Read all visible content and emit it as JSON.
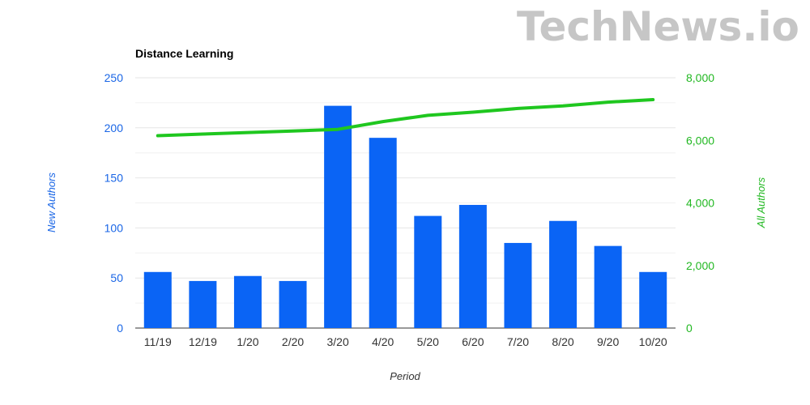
{
  "watermark": "TechNews.io",
  "colors": {
    "bars": "#0a64f5",
    "line": "#1fc71f",
    "left_axis": "#1a66e6",
    "right_axis": "#22b822",
    "grid": "#e6e6e6"
  },
  "chart_data": {
    "type": "bar",
    "title": "Distance Learning",
    "xlabel": "Period",
    "ylabel": "New Authors",
    "y2label": "All Authors",
    "categories": [
      "11/19",
      "12/19",
      "1/20",
      "2/20",
      "3/20",
      "4/20",
      "5/20",
      "6/20",
      "7/20",
      "8/20",
      "9/20",
      "10/20"
    ],
    "ylim": [
      0,
      250
    ],
    "y_ticks": [
      "0",
      "50",
      "100",
      "150",
      "200",
      "250"
    ],
    "y2lim": [
      0,
      8000
    ],
    "y2_ticks": [
      "0",
      "2,000",
      "4,000",
      "6,000",
      "8,000"
    ],
    "grid": true,
    "series": [
      {
        "name": "New Authors",
        "type": "bar",
        "axis": "left",
        "values": [
          56,
          47,
          52,
          47,
          222,
          190,
          112,
          123,
          85,
          107,
          82,
          56
        ]
      },
      {
        "name": "All Authors",
        "type": "line",
        "axis": "right",
        "values": [
          6150,
          6200,
          6250,
          6300,
          6350,
          6600,
          6800,
          6900,
          7020,
          7100,
          7220,
          7300
        ]
      }
    ]
  }
}
